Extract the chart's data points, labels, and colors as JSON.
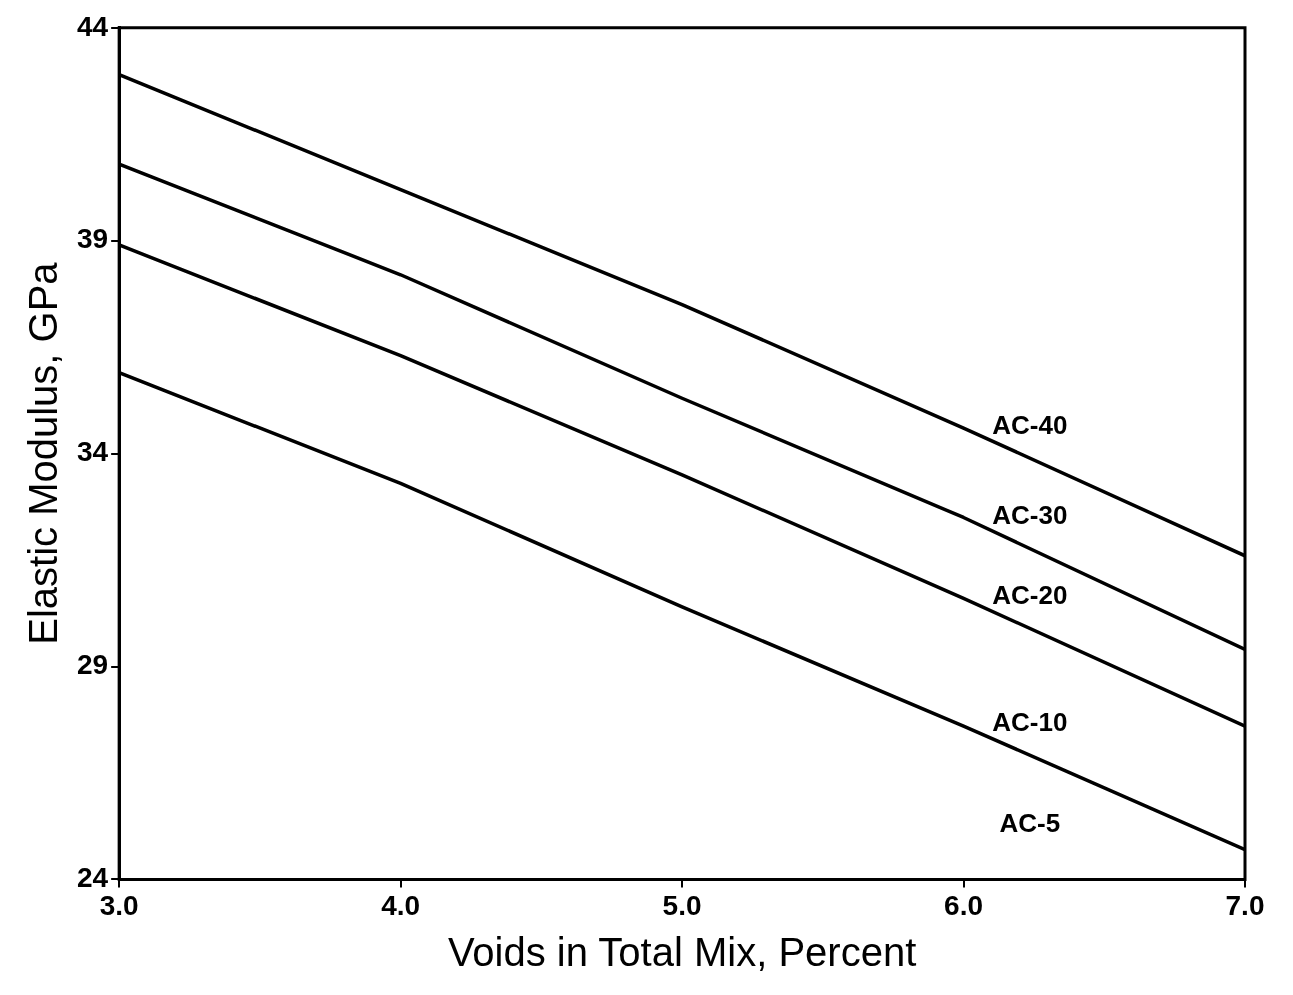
{
  "chart_data": {
    "type": "line",
    "xlabel": "Voids in Total Mix, Percent",
    "ylabel": "Elastic Modulus, GPa",
    "x": [
      3,
      4,
      5,
      6,
      7
    ],
    "series": [
      {
        "name": "AC-40",
        "color": "#000000",
        "values": [
          42.9,
          40.2,
          37.5,
          34.6,
          31.6
        ]
      },
      {
        "name": "AC-30",
        "color": "#000000",
        "values": [
          40.8,
          38.2,
          35.3,
          32.5,
          29.4
        ]
      },
      {
        "name": "AC-20",
        "color": "#000000",
        "values": [
          38.9,
          36.3,
          33.5,
          30.6,
          27.6
        ]
      },
      {
        "name": "AC-10",
        "color": "#000000",
        "values": [
          35.9,
          33.3,
          30.4,
          27.6,
          24.7
        ]
      }
    ],
    "xlim": [
      3,
      7
    ],
    "xticks": [
      {
        "value": 3,
        "label": "3.0"
      },
      {
        "value": 4,
        "label": "4.0"
      },
      {
        "value": 5,
        "label": "5.0"
      },
      {
        "value": 6,
        "label": "6.0"
      },
      {
        "value": 7,
        "label": "7.0"
      }
    ],
    "ylim": [
      24,
      44
    ],
    "yticks": [
      24,
      29,
      34,
      39,
      44
    ],
    "grid": false,
    "legend": false,
    "marker": "none",
    "line_style": "solid",
    "annotations": [
      "AC-5"
    ]
  }
}
